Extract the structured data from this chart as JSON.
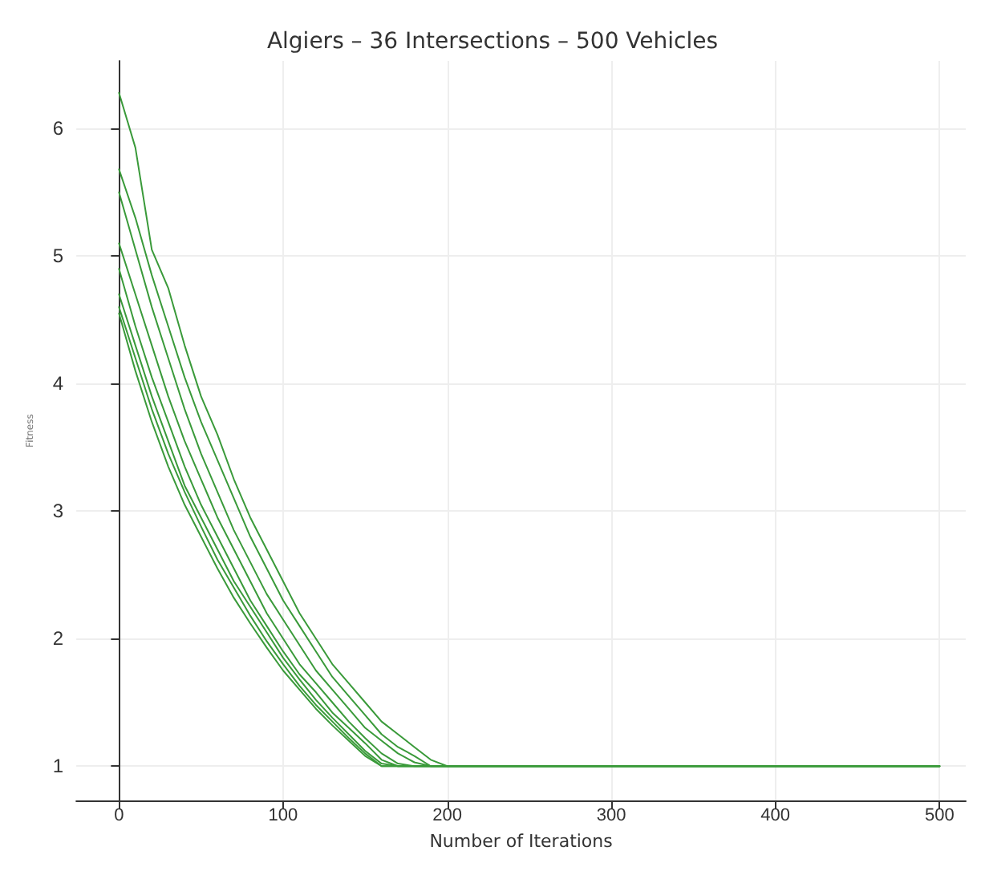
{
  "chart_data": {
    "type": "line",
    "title": "Algiers – 36 Intersections – 500 Vehicles",
    "xlabel": "Number of Iterations",
    "ylabel": "Fitness",
    "x": [
      0,
      10,
      20,
      30,
      40,
      50,
      60,
      70,
      80,
      90,
      100,
      110,
      120,
      130,
      140,
      150,
      160,
      170,
      180,
      190,
      200,
      300,
      400,
      500
    ],
    "series": [
      {
        "color": "#3a9a3a",
        "values": [
          6.28,
          5.85,
          5.05,
          4.75,
          4.3,
          3.9,
          3.6,
          3.25,
          2.95,
          2.7,
          2.45,
          2.2,
          2.0,
          1.8,
          1.65,
          1.5,
          1.35,
          1.25,
          1.15,
          1.05,
          1.0,
          1,
          1,
          1
        ]
      },
      {
        "color": "#3a9a3a",
        "values": [
          5.68,
          5.3,
          4.85,
          4.45,
          4.05,
          3.7,
          3.4,
          3.1,
          2.8,
          2.55,
          2.3,
          2.1,
          1.9,
          1.7,
          1.55,
          1.4,
          1.25,
          1.15,
          1.08,
          1.0,
          1,
          1,
          1,
          1
        ]
      },
      {
        "color": "#3a9a3a",
        "values": [
          5.5,
          5.05,
          4.6,
          4.2,
          3.8,
          3.45,
          3.15,
          2.85,
          2.6,
          2.35,
          2.15,
          1.95,
          1.75,
          1.6,
          1.45,
          1.3,
          1.2,
          1.1,
          1.03,
          1,
          1,
          1,
          1,
          1
        ]
      },
      {
        "color": "#3a9a3a",
        "values": [
          5.1,
          4.7,
          4.3,
          3.9,
          3.55,
          3.25,
          2.95,
          2.7,
          2.45,
          2.2,
          2.0,
          1.8,
          1.65,
          1.5,
          1.35,
          1.22,
          1.1,
          1.02,
          1,
          1,
          1,
          1,
          1,
          1
        ]
      },
      {
        "color": "#3a9a3a",
        "values": [
          4.9,
          4.45,
          4.05,
          3.7,
          3.35,
          3.05,
          2.8,
          2.55,
          2.3,
          2.1,
          1.9,
          1.72,
          1.58,
          1.42,
          1.3,
          1.18,
          1.05,
          1,
          1,
          1,
          1,
          1,
          1,
          1
        ]
      },
      {
        "color": "#3a9a3a",
        "values": [
          4.7,
          4.3,
          3.9,
          3.55,
          3.2,
          2.95,
          2.7,
          2.45,
          2.25,
          2.05,
          1.85,
          1.68,
          1.52,
          1.38,
          1.25,
          1.12,
          1.02,
          1,
          1,
          1,
          1,
          1,
          1,
          1
        ]
      },
      {
        "color": "#3a9a3a",
        "values": [
          4.6,
          4.2,
          3.8,
          3.45,
          3.15,
          2.88,
          2.62,
          2.4,
          2.18,
          1.98,
          1.8,
          1.63,
          1.48,
          1.35,
          1.22,
          1.1,
          1.0,
          1,
          1,
          1,
          1,
          1,
          1,
          1
        ]
      },
      {
        "color": "#3a9a3a",
        "values": [
          4.55,
          4.1,
          3.7,
          3.35,
          3.05,
          2.8,
          2.55,
          2.32,
          2.12,
          1.93,
          1.75,
          1.6,
          1.45,
          1.32,
          1.2,
          1.08,
          1,
          1,
          1,
          1,
          1,
          1,
          1,
          1
        ]
      }
    ],
    "xlim": [
      -26,
      516
    ],
    "ylim": [
      0.73,
      6.53
    ],
    "xticks": [
      0,
      100,
      200,
      300,
      400,
      500
    ],
    "yticks": [
      1,
      2,
      3,
      4,
      5,
      6
    ],
    "grid": true,
    "marker": "none",
    "line_style": "solid"
  }
}
